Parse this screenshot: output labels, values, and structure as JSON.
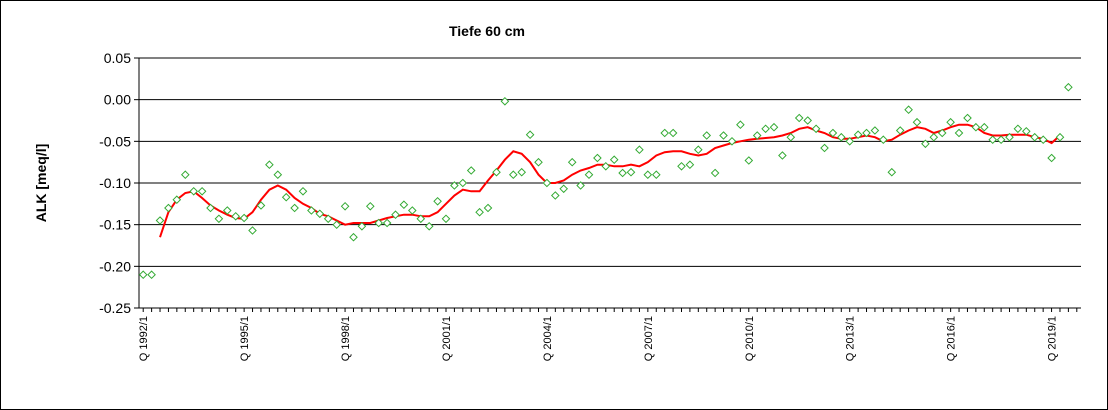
{
  "chart_data": {
    "type": "scatter",
    "title": "Tiefe  60 cm",
    "xlabel": "",
    "ylabel": "ALK [meq/l]",
    "ylim": [
      -0.25,
      0.05
    ],
    "yticks": [
      0.05,
      0.0,
      -0.05,
      -0.1,
      -0.15,
      -0.2,
      -0.25
    ],
    "ytick_labels": [
      "0.05",
      "0.00",
      "-0.05",
      "-0.10",
      "-0.15",
      "-0.20",
      "-0.25"
    ],
    "x_categories": "quarters Q 1992/1 to Q 2019/4",
    "xtick_labels": [
      "Q 1992/1",
      "Q 1995/1",
      "Q 1998/1",
      "Q 2001/1",
      "Q 2004/1",
      "Q 2007/1",
      "Q 2010/1",
      "Q 2013/1",
      "Q 2016/1",
      "Q 2019/1"
    ],
    "xtick_quarter_index": [
      0,
      12,
      24,
      36,
      48,
      60,
      72,
      84,
      96,
      108
    ],
    "n_quarters": 112,
    "grid": "horizontal",
    "legend": "none",
    "series": [
      {
        "type": "scatter",
        "marker": "diamond",
        "color": "#33aa33",
        "points": [
          [
            0,
            -0.21
          ],
          [
            1,
            -0.21
          ],
          [
            2,
            -0.145
          ],
          [
            3,
            -0.13
          ],
          [
            4,
            -0.12
          ],
          [
            5,
            -0.09
          ],
          [
            6,
            -0.11
          ],
          [
            7,
            -0.11
          ],
          [
            8,
            -0.13
          ],
          [
            9,
            -0.143
          ],
          [
            10,
            -0.133
          ],
          [
            11,
            -0.14
          ],
          [
            12,
            -0.142
          ],
          [
            13,
            -0.157
          ],
          [
            14,
            -0.127
          ],
          [
            15,
            -0.078
          ],
          [
            16,
            -0.09
          ],
          [
            17,
            -0.117
          ],
          [
            18,
            -0.13
          ],
          [
            19,
            -0.11
          ],
          [
            20,
            -0.133
          ],
          [
            21,
            -0.137
          ],
          [
            22,
            -0.143
          ],
          [
            23,
            -0.15
          ],
          [
            24,
            -0.128
          ],
          [
            25,
            -0.165
          ],
          [
            26,
            -0.152
          ],
          [
            27,
            -0.128
          ],
          [
            28,
            -0.148
          ],
          [
            29,
            -0.148
          ],
          [
            30,
            -0.138
          ],
          [
            31,
            -0.126
          ],
          [
            32,
            -0.133
          ],
          [
            33,
            -0.143
          ],
          [
            34,
            -0.152
          ],
          [
            35,
            -0.122
          ],
          [
            36,
            -0.143
          ],
          [
            37,
            -0.103
          ],
          [
            38,
            -0.1
          ],
          [
            39,
            -0.085
          ],
          [
            40,
            -0.135
          ],
          [
            41,
            -0.13
          ],
          [
            42,
            -0.087
          ],
          [
            43,
            -0.002
          ],
          [
            44,
            -0.09
          ],
          [
            45,
            -0.087
          ],
          [
            46,
            -0.042
          ],
          [
            47,
            -0.075
          ],
          [
            48,
            -0.1
          ],
          [
            49,
            -0.115
          ],
          [
            50,
            -0.107
          ],
          [
            51,
            -0.075
          ],
          [
            52,
            -0.103
          ],
          [
            53,
            -0.09
          ],
          [
            54,
            -0.07
          ],
          [
            55,
            -0.08
          ],
          [
            56,
            -0.072
          ],
          [
            57,
            -0.088
          ],
          [
            58,
            -0.087
          ],
          [
            59,
            -0.06
          ],
          [
            60,
            -0.09
          ],
          [
            61,
            -0.09
          ],
          [
            62,
            -0.04
          ],
          [
            63,
            -0.04
          ],
          [
            64,
            -0.08
          ],
          [
            65,
            -0.078
          ],
          [
            66,
            -0.06
          ],
          [
            67,
            -0.043
          ],
          [
            68,
            -0.088
          ],
          [
            69,
            -0.043
          ],
          [
            70,
            -0.05
          ],
          [
            71,
            -0.03
          ],
          [
            72,
            -0.073
          ],
          [
            73,
            -0.043
          ],
          [
            74,
            -0.035
          ],
          [
            75,
            -0.033
          ],
          [
            76,
            -0.067
          ],
          [
            77,
            -0.045
          ],
          [
            78,
            -0.022
          ],
          [
            79,
            -0.025
          ],
          [
            80,
            -0.035
          ],
          [
            81,
            -0.058
          ],
          [
            82,
            -0.04
          ],
          [
            83,
            -0.045
          ],
          [
            84,
            -0.05
          ],
          [
            85,
            -0.042
          ],
          [
            86,
            -0.04
          ],
          [
            87,
            -0.037
          ],
          [
            88,
            -0.048
          ],
          [
            89,
            -0.087
          ],
          [
            90,
            -0.037
          ],
          [
            91,
            -0.012
          ],
          [
            92,
            -0.027
          ],
          [
            93,
            -0.053
          ],
          [
            94,
            -0.045
          ],
          [
            95,
            -0.04
          ],
          [
            96,
            -0.027
          ],
          [
            97,
            -0.04
          ],
          [
            98,
            -0.022
          ],
          [
            99,
            -0.033
          ],
          [
            100,
            -0.033
          ],
          [
            101,
            -0.048
          ],
          [
            102,
            -0.048
          ],
          [
            103,
            -0.045
          ],
          [
            104,
            -0.035
          ],
          [
            105,
            -0.038
          ],
          [
            106,
            -0.045
          ],
          [
            107,
            -0.048
          ],
          [
            108,
            -0.07
          ],
          [
            109,
            -0.045
          ],
          [
            110,
            0.015
          ]
        ]
      },
      {
        "type": "line",
        "color": "#ff0000",
        "points": [
          [
            2,
            -0.165
          ],
          [
            3,
            -0.135
          ],
          [
            4,
            -0.12
          ],
          [
            5,
            -0.112
          ],
          [
            6,
            -0.11
          ],
          [
            7,
            -0.118
          ],
          [
            8,
            -0.127
          ],
          [
            9,
            -0.133
          ],
          [
            10,
            -0.138
          ],
          [
            11,
            -0.142
          ],
          [
            12,
            -0.143
          ],
          [
            13,
            -0.135
          ],
          [
            14,
            -0.12
          ],
          [
            15,
            -0.108
          ],
          [
            16,
            -0.103
          ],
          [
            17,
            -0.108
          ],
          [
            18,
            -0.118
          ],
          [
            19,
            -0.125
          ],
          [
            20,
            -0.13
          ],
          [
            21,
            -0.137
          ],
          [
            22,
            -0.14
          ],
          [
            23,
            -0.145
          ],
          [
            24,
            -0.15
          ],
          [
            25,
            -0.148
          ],
          [
            26,
            -0.148
          ],
          [
            27,
            -0.148
          ],
          [
            28,
            -0.145
          ],
          [
            29,
            -0.142
          ],
          [
            30,
            -0.14
          ],
          [
            31,
            -0.138
          ],
          [
            32,
            -0.138
          ],
          [
            33,
            -0.14
          ],
          [
            34,
            -0.14
          ],
          [
            35,
            -0.135
          ],
          [
            36,
            -0.125
          ],
          [
            37,
            -0.115
          ],
          [
            38,
            -0.108
          ],
          [
            39,
            -0.11
          ],
          [
            40,
            -0.11
          ],
          [
            41,
            -0.097
          ],
          [
            42,
            -0.085
          ],
          [
            43,
            -0.072
          ],
          [
            44,
            -0.062
          ],
          [
            45,
            -0.065
          ],
          [
            46,
            -0.075
          ],
          [
            47,
            -0.09
          ],
          [
            48,
            -0.1
          ],
          [
            49,
            -0.1
          ],
          [
            50,
            -0.097
          ],
          [
            51,
            -0.09
          ],
          [
            52,
            -0.085
          ],
          [
            53,
            -0.082
          ],
          [
            54,
            -0.078
          ],
          [
            55,
            -0.078
          ],
          [
            56,
            -0.08
          ],
          [
            57,
            -0.08
          ],
          [
            58,
            -0.078
          ],
          [
            59,
            -0.08
          ],
          [
            60,
            -0.075
          ],
          [
            61,
            -0.067
          ],
          [
            62,
            -0.063
          ],
          [
            63,
            -0.062
          ],
          [
            64,
            -0.062
          ],
          [
            65,
            -0.065
          ],
          [
            66,
            -0.067
          ],
          [
            67,
            -0.065
          ],
          [
            68,
            -0.058
          ],
          [
            69,
            -0.055
          ],
          [
            70,
            -0.052
          ],
          [
            71,
            -0.05
          ],
          [
            72,
            -0.048
          ],
          [
            73,
            -0.047
          ],
          [
            74,
            -0.046
          ],
          [
            75,
            -0.045
          ],
          [
            76,
            -0.043
          ],
          [
            77,
            -0.04
          ],
          [
            78,
            -0.035
          ],
          [
            79,
            -0.033
          ],
          [
            80,
            -0.037
          ],
          [
            81,
            -0.04
          ],
          [
            82,
            -0.045
          ],
          [
            83,
            -0.047
          ],
          [
            84,
            -0.047
          ],
          [
            85,
            -0.045
          ],
          [
            86,
            -0.043
          ],
          [
            87,
            -0.045
          ],
          [
            88,
            -0.05
          ],
          [
            89,
            -0.048
          ],
          [
            90,
            -0.042
          ],
          [
            91,
            -0.037
          ],
          [
            92,
            -0.033
          ],
          [
            93,
            -0.035
          ],
          [
            94,
            -0.04
          ],
          [
            95,
            -0.037
          ],
          [
            96,
            -0.033
          ],
          [
            97,
            -0.03
          ],
          [
            98,
            -0.03
          ],
          [
            99,
            -0.033
          ],
          [
            100,
            -0.04
          ],
          [
            101,
            -0.043
          ],
          [
            102,
            -0.043
          ],
          [
            103,
            -0.042
          ],
          [
            104,
            -0.042
          ],
          [
            105,
            -0.042
          ],
          [
            106,
            -0.045
          ],
          [
            107,
            -0.047
          ],
          [
            108,
            -0.052
          ],
          [
            109,
            -0.043
          ]
        ]
      }
    ]
  }
}
